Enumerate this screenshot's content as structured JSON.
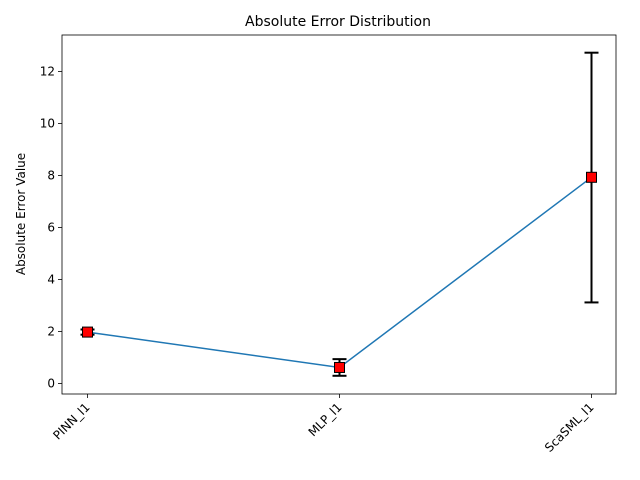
{
  "chart_data": {
    "type": "line",
    "title": "Absolute Error Distribution",
    "xlabel": "",
    "ylabel": "Absolute Error Value",
    "categories": [
      "PINN_l1",
      "MLP_l1",
      "ScaSML_l1"
    ],
    "series": [
      {
        "values": [
          1.98,
          0.62,
          7.93
        ],
        "err_low": [
          1.88,
          0.3,
          3.12
        ],
        "err_high": [
          2.08,
          0.94,
          12.72
        ]
      }
    ],
    "ylim": [
      -0.4,
      13.4
    ],
    "yticks": [
      0,
      2,
      4,
      6,
      8,
      10,
      12
    ],
    "grid": false,
    "line_color": "#1f77b4",
    "marker_color": "#ff0000",
    "errorbar_color": "#000000"
  }
}
